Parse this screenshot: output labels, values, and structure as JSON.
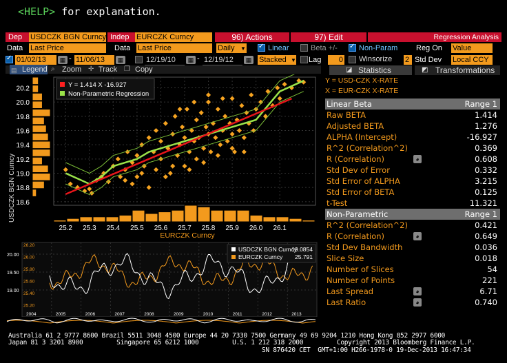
{
  "help": {
    "key": "<HELP>",
    "text": " for explanation."
  },
  "top": {
    "dep_label": "Dep",
    "dep_value": "USDCZK BGN Curncy",
    "indep_label": "Indep",
    "indep_value": "EURCZK Curncy",
    "actions_label": "96) Actions",
    "edit_label": "97) Edit",
    "title": "Regression Analysis",
    "data_label": "Data",
    "data_value": "Last Price",
    "data2_label": "Data",
    "data2_value": "Last Price",
    "period": "Daily",
    "linear": "Linear",
    "beta": "Beta +/-",
    "nonparam": "Non-Param",
    "regon": "Reg On",
    "regon_value": "Value",
    "winsorize": "Winsorize",
    "winsorize_num": "2",
    "stddev": "Std Dev",
    "localccy": "Local CCY",
    "date1": "01/02/13",
    "date2": "11/06/13",
    "date3": "12/19/10",
    "date4": "12/19/12",
    "stacked": "Stacked",
    "lag": "Lag",
    "lag_value": "0"
  },
  "toolbar": {
    "legend": "Legend",
    "zoom": "Zoom",
    "track": "Track",
    "copy": "Copy",
    "statistics": "Statistics",
    "transformations": "Transformations"
  },
  "axes": {
    "y_name": "Y = USD-CZK X-RATE",
    "x_name": "X = EUR-CZK X-RATE"
  },
  "stats_linear": {
    "header": "Linear Beta",
    "header_range": "Range 1",
    "rows": [
      {
        "k": "Raw BETA",
        "v": "1.414"
      },
      {
        "k": "Adjusted BETA",
        "v": "1.276"
      },
      {
        "k": "ALPHA (Intercept)",
        "v": "-16.927"
      },
      {
        "k": "R^2 (Correlation^2)",
        "v": "0.369"
      },
      {
        "k": "R (Correlation)",
        "v": "0.608"
      },
      {
        "k": "Std Dev of Error",
        "v": "0.332"
      },
      {
        "k": "Std Error of ALPHA",
        "v": "3.215"
      },
      {
        "k": "Std Error of BETA",
        "v": "0.125"
      },
      {
        "k": "t-Test",
        "v": "11.321"
      }
    ]
  },
  "stats_np": {
    "header": "Non-Parametric",
    "header_range": "Range 1",
    "rows": [
      {
        "k": "R^2 (Correlation^2)",
        "v": "0.421"
      },
      {
        "k": "R (Correlation)",
        "v": "0.649"
      },
      {
        "k": "Std Dev Bandwidth",
        "v": "0.036"
      },
      {
        "k": "Slice Size",
        "v": "0.018"
      },
      {
        "k": "Number of Slices",
        "v": "54"
      },
      {
        "k": "Number of Points",
        "v": "221"
      },
      {
        "k": "Last Spread",
        "v": "6.71"
      },
      {
        "k": "Last Ratio",
        "v": "0.740"
      }
    ]
  },
  "chart_data": [
    {
      "type": "scatter",
      "xlabel": "EURCZK Curncy",
      "ylabel": "USDCZK BGN Curncy",
      "xlim": [
        25.15,
        26.25
      ],
      "ylim": [
        18.55,
        20.35
      ],
      "xticks": [
        "25.2",
        "25.3",
        "25.4",
        "25.5",
        "25.6",
        "25.7",
        "25.8",
        "25.9",
        "26.0",
        "26.1"
      ],
      "yticks": [
        "20.2",
        "20.0",
        "19.8",
        "19.6",
        "19.4",
        "19.2",
        "19.0",
        "18.8",
        "18.6"
      ],
      "legend": [
        {
          "name": "Y = 1.414 X  -16.927",
          "color": "#ff2020"
        },
        {
          "name": "Non-Parametric Regression",
          "color": "#9be34a"
        }
      ],
      "regression": {
        "slope": 1.414,
        "intercept": -16.927
      },
      "points": [
        [
          25.2,
          19.05
        ],
        [
          25.22,
          18.85
        ],
        [
          25.25,
          18.8
        ],
        [
          25.28,
          18.75
        ],
        [
          25.3,
          18.78
        ],
        [
          25.31,
          18.72
        ],
        [
          25.33,
          18.9
        ],
        [
          25.35,
          18.95
        ],
        [
          25.36,
          19.0
        ],
        [
          25.38,
          18.88
        ],
        [
          25.4,
          19.1
        ],
        [
          25.42,
          19.2
        ],
        [
          25.43,
          18.95
        ],
        [
          25.45,
          19.05
        ],
        [
          25.46,
          19.3
        ],
        [
          25.48,
          19.15
        ],
        [
          25.5,
          19.25
        ],
        [
          25.5,
          18.95
        ],
        [
          25.52,
          19.4
        ],
        [
          25.53,
          19.1
        ],
        [
          25.55,
          19.5
        ],
        [
          25.55,
          18.8
        ],
        [
          25.57,
          19.3
        ],
        [
          25.58,
          19.6
        ],
        [
          25.6,
          19.2
        ],
        [
          25.6,
          19.45
        ],
        [
          25.62,
          19.7
        ],
        [
          25.63,
          19.35
        ],
        [
          25.64,
          19.0
        ],
        [
          25.65,
          19.55
        ],
        [
          25.66,
          19.8
        ],
        [
          25.67,
          19.25
        ],
        [
          25.68,
          19.4
        ],
        [
          25.69,
          19.65
        ],
        [
          25.7,
          19.1
        ],
        [
          25.7,
          19.5
        ],
        [
          25.71,
          19.9
        ],
        [
          25.72,
          19.3
        ],
        [
          25.73,
          19.6
        ],
        [
          25.74,
          19.45
        ],
        [
          25.75,
          19.75
        ],
        [
          25.75,
          19.2
        ],
        [
          25.76,
          19.5
        ],
        [
          25.77,
          19.85
        ],
        [
          25.78,
          19.35
        ],
        [
          25.79,
          19.65
        ],
        [
          25.8,
          19.55
        ],
        [
          25.8,
          20.0
        ],
        [
          25.81,
          19.3
        ],
        [
          25.82,
          19.7
        ],
        [
          25.83,
          19.5
        ],
        [
          25.84,
          19.9
        ],
        [
          25.85,
          19.4
        ],
        [
          25.86,
          19.6
        ],
        [
          25.87,
          19.8
        ],
        [
          25.88,
          19.45
        ],
        [
          25.89,
          19.7
        ],
        [
          25.9,
          19.55
        ],
        [
          25.9,
          20.05
        ],
        [
          25.91,
          19.3
        ],
        [
          25.92,
          19.75
        ],
        [
          25.93,
          19.6
        ],
        [
          25.94,
          19.95
        ],
        [
          25.95,
          19.5
        ],
        [
          25.96,
          19.85
        ],
        [
          25.97,
          19.7
        ],
        [
          25.98,
          20.1
        ],
        [
          25.99,
          19.6
        ],
        [
          26.0,
          19.9
        ],
        [
          26.02,
          20.0
        ],
        [
          26.04,
          19.8
        ],
        [
          26.05,
          20.15
        ],
        [
          26.07,
          19.95
        ],
        [
          26.09,
          20.2
        ],
        [
          26.1,
          20.05
        ],
        [
          26.12,
          20.25
        ],
        [
          26.15,
          20.2
        ],
        [
          26.18,
          20.3
        ],
        [
          26.2,
          20.28
        ],
        [
          25.62,
          18.95
        ],
        [
          25.58,
          19.05
        ],
        [
          25.65,
          19.1
        ],
        [
          25.72,
          19.05
        ],
        [
          25.78,
          19.15
        ],
        [
          25.84,
          19.25
        ],
        [
          25.9,
          19.35
        ],
        [
          25.95,
          19.3
        ],
        [
          25.45,
          18.9
        ],
        [
          25.48,
          18.85
        ],
        [
          25.52,
          19.0
        ],
        [
          25.68,
          19.9
        ],
        [
          25.74,
          20.0
        ],
        [
          25.8,
          20.1
        ],
        [
          25.86,
          20.05
        ]
      ],
      "np_curve": [
        [
          25.2,
          19.0
        ],
        [
          25.3,
          18.85
        ],
        [
          25.35,
          18.95
        ],
        [
          25.4,
          19.1
        ],
        [
          25.5,
          19.2
        ],
        [
          25.55,
          19.3
        ],
        [
          25.6,
          19.35
        ],
        [
          25.7,
          19.45
        ],
        [
          25.8,
          19.55
        ],
        [
          25.85,
          19.6
        ],
        [
          25.9,
          19.65
        ],
        [
          26.0,
          19.75
        ],
        [
          26.05,
          19.95
        ],
        [
          26.1,
          20.15
        ],
        [
          26.2,
          20.3
        ]
      ]
    },
    {
      "type": "line",
      "series": [
        {
          "name": "USDCZK BGN Curncy",
          "last": "19.0854",
          "color": "#ffffff"
        },
        {
          "name": "EURCZK Curncy",
          "last": "25.791",
          "color": "#f39a1d"
        }
      ],
      "left_ticks": [
        "20.00",
        "19.50",
        "19.00"
      ],
      "right_ticks": [
        "26.20",
        "26.00",
        "25.80",
        "25.60",
        "25.40",
        "25.20"
      ],
      "years": [
        "2004",
        "2005",
        "2006",
        "2007",
        "2008",
        "2009",
        "2010",
        "2011",
        "2012",
        "2013"
      ]
    }
  ],
  "footer": {
    "line1": "Australia 61 2 9777 8600 Brazil 5511 3048 4500 Europe 44 20 7330 7500 Germany 49 69 9204 1210 Hong Kong 852 2977 6000",
    "line2": "Japan 81 3 3201 8900         Singapore 65 6212 1000         U.S. 1 212 318 2000         Copyright 2013 Bloomberg Finance L.P.",
    "line3": "SN 876420 CET  GMT+1:00 H266-1978-0 19-Dec-2013 16:47:34"
  }
}
